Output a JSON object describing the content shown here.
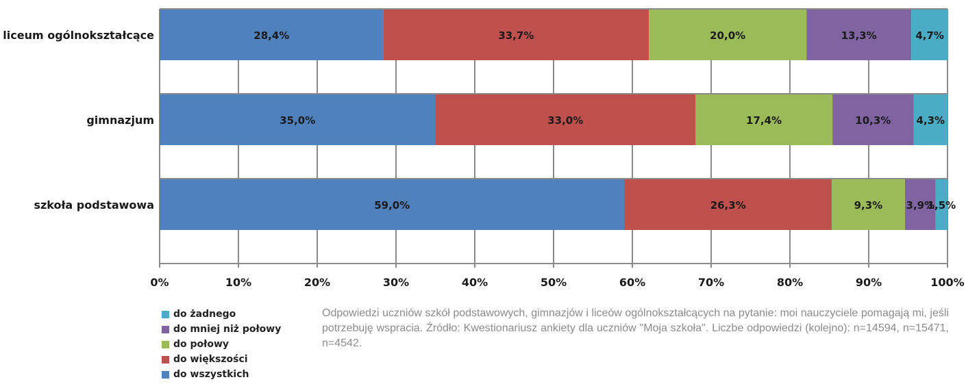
{
  "chart_data": {
    "type": "bar",
    "orientation": "horizontal",
    "stacked": true,
    "categories": [
      "liceum ogólnokształcące",
      "gimnazjum",
      "szkoła podstawowa"
    ],
    "series": [
      {
        "name": "do wszystkich",
        "color": "#4f81bd",
        "values": [
          28.4,
          35.0,
          59.0
        ],
        "labels": [
          "28,4%",
          "35,0%",
          "59,0%"
        ]
      },
      {
        "name": "do większości",
        "color": "#c0504d",
        "values": [
          33.7,
          33.0,
          26.3
        ],
        "labels": [
          "33,7%",
          "33,0%",
          "26,3%"
        ]
      },
      {
        "name": "do połowy",
        "color": "#9bbb59",
        "values": [
          20.0,
          17.4,
          9.3
        ],
        "labels": [
          "20,0%",
          "17,4%",
          "9,3%"
        ]
      },
      {
        "name": "do mniej niż połowy",
        "color": "#8064a2",
        "values": [
          13.3,
          10.3,
          3.9
        ],
        "labels": [
          "13,3%",
          "10,3%",
          "3,9%"
        ]
      },
      {
        "name": "do żadnego",
        "color": "#4bacc6",
        "values": [
          4.7,
          4.3,
          1.5
        ],
        "labels": [
          "4,7%",
          "4,3%",
          "1,5%"
        ]
      }
    ],
    "xlim": [
      0,
      100
    ],
    "xticks": [
      "0%",
      "10%",
      "20%",
      "30%",
      "40%",
      "50%",
      "60%",
      "70%",
      "80%",
      "90%",
      "100%"
    ],
    "grid": true,
    "legend_placement": "bottom-left"
  },
  "legend_items": [
    "do żadnego",
    "do mniej niż połowy",
    "do połowy",
    "do większości",
    "do wszystkich"
  ],
  "legend_colors": [
    "#4bacc6",
    "#8064a2",
    "#9bbb59",
    "#c0504d",
    "#4f81bd"
  ],
  "caption": "Odpowiedzi uczniów szkół podstawowych, gimnazjów i liceów ogólnokształcących na pytanie: moi nauczyciele pomagają mi, jeśli potrzebuję wspracia. Źródło: Kwestionariusz ankiety dla uczniów \"Moja szkoła\". Liczbe odpowiedzi (kolejno): n=14594, n=15471, n=4542."
}
